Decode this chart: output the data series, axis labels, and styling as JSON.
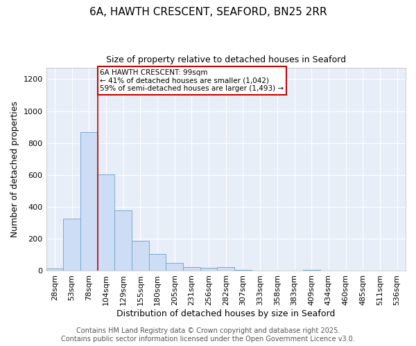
{
  "title": "6A, HAWTH CRESCENT, SEAFORD, BN25 2RR",
  "subtitle": "Size of property relative to detached houses in Seaford",
  "xlabel": "Distribution of detached houses by size in Seaford",
  "ylabel": "Number of detached properties",
  "categories": [
    "28sqm",
    "53sqm",
    "78sqm",
    "104sqm",
    "129sqm",
    "155sqm",
    "180sqm",
    "205sqm",
    "231sqm",
    "256sqm",
    "282sqm",
    "307sqm",
    "333sqm",
    "358sqm",
    "383sqm",
    "409sqm",
    "434sqm",
    "460sqm",
    "485sqm",
    "511sqm",
    "536sqm"
  ],
  "values": [
    14,
    325,
    870,
    605,
    378,
    190,
    105,
    48,
    22,
    18,
    22,
    5,
    0,
    0,
    0,
    8,
    0,
    0,
    0,
    0,
    0
  ],
  "bar_color": "#ccddf5",
  "bar_edge_color": "#7aaad0",
  "vline_color": "#cc0000",
  "vline_x_index": 3,
  "annotation_text": "6A HAWTH CRESCENT: 99sqm\n← 41% of detached houses are smaller (1,042)\n59% of semi-detached houses are larger (1,493) →",
  "annotation_box_facecolor": "#ffffff",
  "annotation_box_edgecolor": "#cc0000",
  "ylim": [
    0,
    1270
  ],
  "yticks": [
    0,
    200,
    400,
    600,
    800,
    1000,
    1200
  ],
  "bg_color": "#ffffff",
  "plot_bg_color": "#e8eef8",
  "grid_color": "#ffffff",
  "footer": "Contains HM Land Registry data © Crown copyright and database right 2025.\nContains public sector information licensed under the Open Government Licence v3.0.",
  "title_fontsize": 11,
  "subtitle_fontsize": 9,
  "axis_fontsize": 9,
  "tick_fontsize": 8,
  "footer_fontsize": 7
}
